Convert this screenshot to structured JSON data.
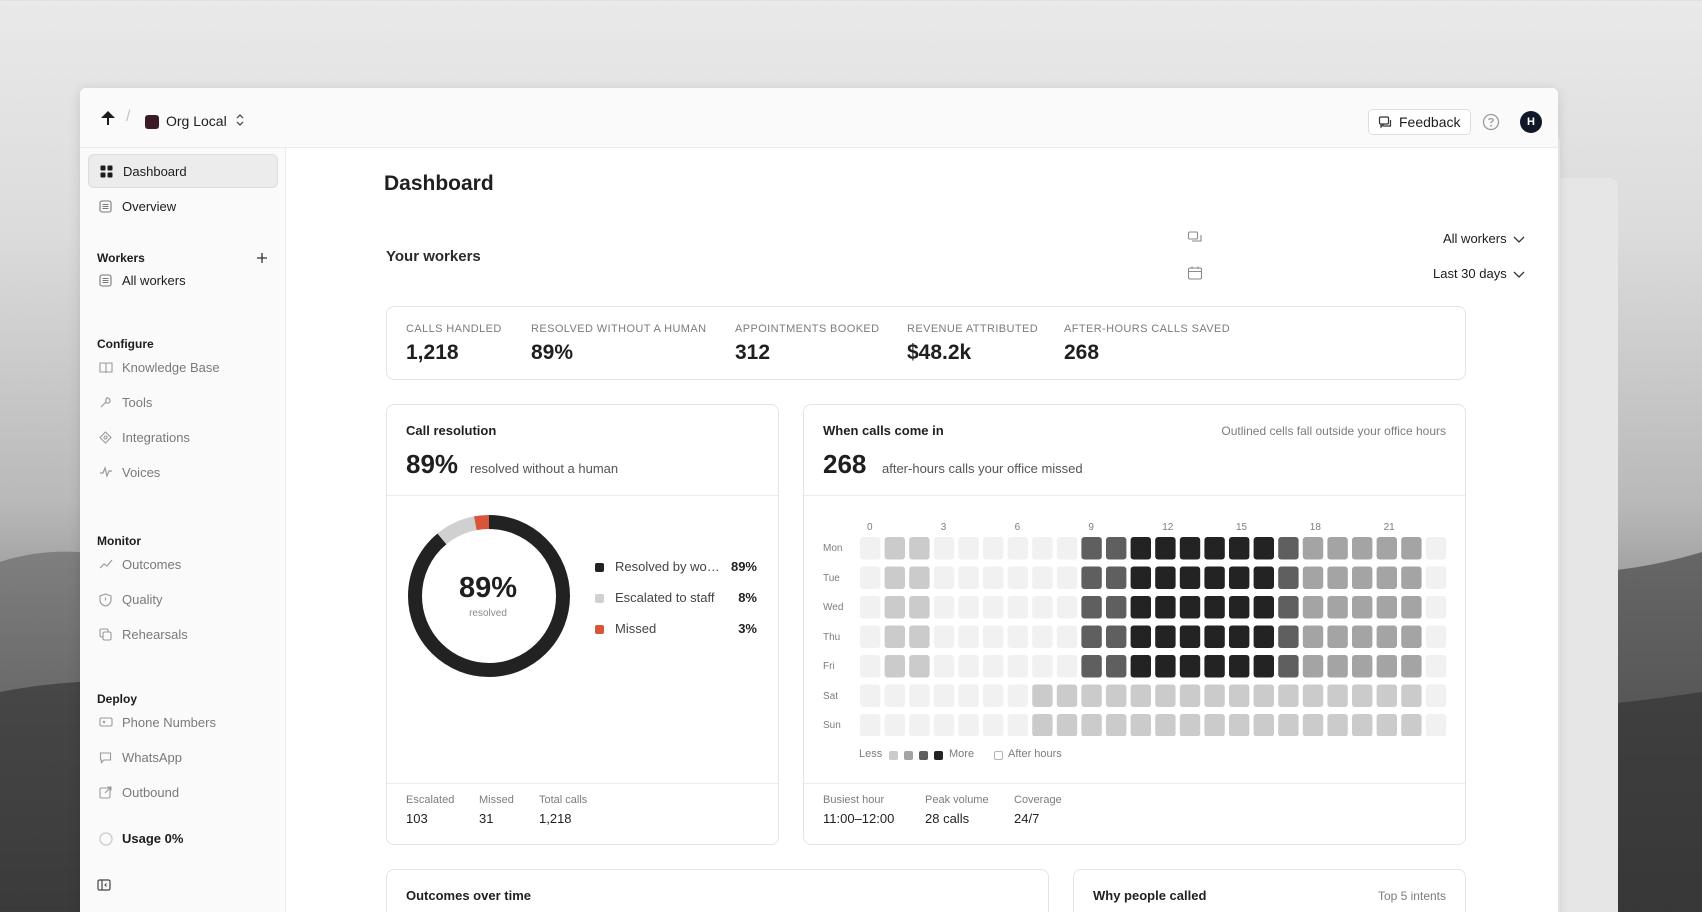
{
  "topbar": {
    "org_name": "Org Local",
    "separator": "/",
    "feedback_label": "Feedback",
    "avatar_initial": "H"
  },
  "sidebar": {
    "items_top": [
      {
        "label": "Dashboard",
        "icon": "grid-icon",
        "active": true
      },
      {
        "label": "Overview",
        "icon": "list-icon",
        "active": false
      }
    ],
    "workers_heading": "Workers",
    "workers_items": [
      {
        "label": "All workers",
        "icon": "list-icon"
      }
    ],
    "configure_heading": "Configure",
    "configure_items": [
      {
        "label": "Knowledge Base",
        "icon": "book-icon"
      },
      {
        "label": "Tools",
        "icon": "wrench-icon"
      },
      {
        "label": "Integrations",
        "icon": "puzzle-icon"
      },
      {
        "label": "Voices",
        "icon": "waveform-icon"
      }
    ],
    "monitor_heading": "Monitor",
    "monitor_items": [
      {
        "label": "Outcomes",
        "icon": "trend-icon"
      },
      {
        "label": "Quality",
        "icon": "shield-icon"
      },
      {
        "label": "Rehearsals",
        "icon": "copy-icon"
      }
    ],
    "deploy_heading": "Deploy",
    "deploy_items": [
      {
        "label": "Phone Numbers",
        "icon": "phone-icon"
      },
      {
        "label": "WhatsApp",
        "icon": "chat-icon"
      },
      {
        "label": "Outbound",
        "icon": "external-icon"
      }
    ],
    "usage_label": "Usage 0%"
  },
  "main": {
    "title": "Dashboard",
    "section_title": "Your workers",
    "filter_workers": "All workers",
    "filter_period": "Last 30 days"
  },
  "kpis": [
    {
      "label": "CALLS HANDLED",
      "value": "1,218"
    },
    {
      "label": "RESOLVED WITHOUT A HUMAN",
      "value": "89%"
    },
    {
      "label": "APPOINTMENTS BOOKED",
      "value": "312"
    },
    {
      "label": "REVENUE ATTRIBUTED",
      "value": "$48.2k"
    },
    {
      "label": "AFTER-HOURS CALLS SAVED",
      "value": "268"
    }
  ],
  "resolution": {
    "title": "Call resolution",
    "big_value": "89%",
    "big_desc": "resolved without a human",
    "donut_center": "89%",
    "donut_label": "resolved",
    "legend": [
      {
        "label": "Resolved by worker",
        "pct": "89%",
        "value": 89,
        "color": "#222222"
      },
      {
        "label": "Escalated to staff",
        "pct": "8%",
        "value": 8,
        "color": "#d0d0d0"
      },
      {
        "label": "Missed",
        "pct": "3%",
        "value": 3,
        "color": "#d9553a"
      }
    ],
    "footer": [
      {
        "label": "Escalated",
        "value": "103"
      },
      {
        "label": "Missed",
        "value": "31"
      },
      {
        "label": "Total calls",
        "value": "1,218"
      }
    ]
  },
  "heatmap": {
    "title": "When calls come in",
    "note": "Outlined cells fall outside your office hours",
    "big_value": "268",
    "big_desc": "after-hours calls your office missed",
    "hour_ticks": [
      "0",
      "3",
      "6",
      "9",
      "12",
      "15",
      "18",
      "21"
    ],
    "days": [
      "Mon",
      "Tue",
      "Wed",
      "Thu",
      "Fri",
      "Sat",
      "Sun"
    ],
    "levels": [
      [
        0,
        1,
        1,
        0,
        0,
        0,
        0,
        0,
        0,
        3,
        3,
        4,
        4,
        4,
        4,
        4,
        4,
        3,
        2,
        2,
        2,
        2,
        2,
        0
      ],
      [
        0,
        1,
        1,
        0,
        0,
        0,
        0,
        0,
        0,
        3,
        3,
        4,
        4,
        4,
        4,
        4,
        4,
        3,
        2,
        2,
        2,
        2,
        2,
        0
      ],
      [
        0,
        1,
        1,
        0,
        0,
        0,
        0,
        0,
        0,
        3,
        3,
        4,
        4,
        4,
        4,
        4,
        4,
        3,
        2,
        2,
        2,
        2,
        2,
        0
      ],
      [
        0,
        1,
        1,
        0,
        0,
        0,
        0,
        0,
        0,
        3,
        3,
        4,
        4,
        4,
        4,
        4,
        4,
        3,
        2,
        2,
        2,
        2,
        2,
        0
      ],
      [
        0,
        1,
        1,
        0,
        0,
        0,
        0,
        0,
        0,
        3,
        3,
        4,
        4,
        4,
        4,
        4,
        4,
        3,
        2,
        2,
        2,
        2,
        2,
        0
      ],
      [
        0,
        0,
        0,
        0,
        0,
        0,
        0,
        1,
        1,
        1,
        1,
        1,
        1,
        1,
        1,
        1,
        1,
        1,
        1,
        1,
        1,
        1,
        1,
        0
      ],
      [
        0,
        0,
        0,
        0,
        0,
        0,
        0,
        1,
        1,
        1,
        1,
        1,
        1,
        1,
        1,
        1,
        1,
        1,
        1,
        1,
        1,
        1,
        1,
        0
      ]
    ],
    "level_colors": [
      "#f1f1f1",
      "#cbcbcb",
      "#a4a4a4",
      "#5f5f5f",
      "#232323"
    ],
    "legend_less": "Less",
    "legend_more": "More",
    "legend_after": "After hours",
    "footer": [
      {
        "label": "Busiest hour",
        "value": "11:00–12:00"
      },
      {
        "label": "Peak volume",
        "value": "28 calls"
      },
      {
        "label": "Coverage",
        "value": "24/7"
      }
    ]
  },
  "outcomes_card": {
    "title": "Outcomes over time"
  },
  "why_card": {
    "title": "Why people called",
    "note": "Top 5 intents"
  }
}
